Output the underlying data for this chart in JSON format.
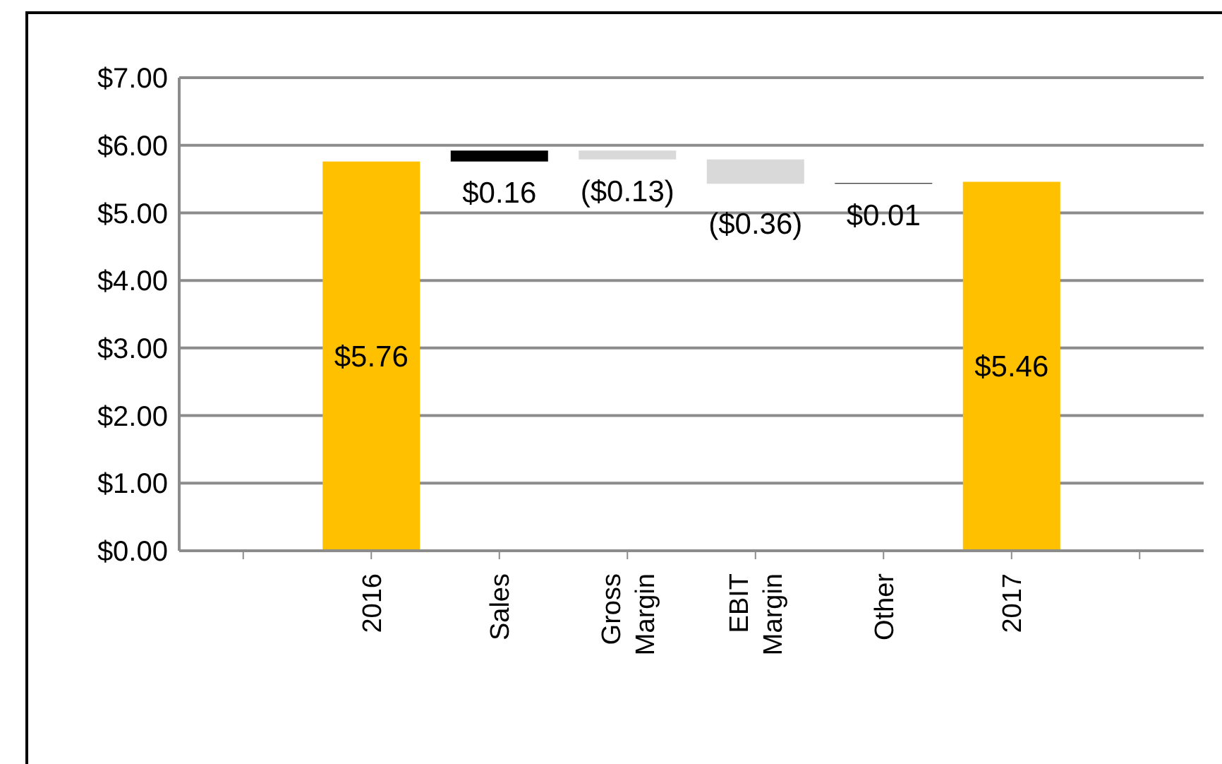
{
  "chart_data": {
    "type": "bar",
    "categories": [
      null,
      "2016",
      "Sales",
      "Gross Margin",
      "EBIT Margin",
      "Other",
      "2017",
      null
    ],
    "values": [
      null,
      5.76,
      0.16,
      -0.13,
      -0.36,
      0.01,
      5.46,
      null
    ],
    "base": [
      null,
      0,
      5.76,
      5.92,
      5.79,
      5.43,
      0,
      null
    ],
    "colors": [
      "#ffc000",
      "#ffc000",
      "#000000",
      "#d9d9d9",
      "#d9d9d9",
      "#000000",
      "#ffc000",
      "#ffc000"
    ],
    "value_labels": [
      null,
      "$5.76",
      "$0.16",
      "($0.13)",
      "($0.36)",
      "$0.01",
      "$5.46",
      null
    ],
    "ylim": [
      0,
      7
    ],
    "yticks": [
      {
        "value": 0,
        "label": "$0.00"
      },
      {
        "value": 1,
        "label": "$1.00"
      },
      {
        "value": 2,
        "label": "$2.00"
      },
      {
        "value": 3,
        "label": "$3.00"
      },
      {
        "value": 4,
        "label": "$4.00"
      },
      {
        "value": 5,
        "label": "$5.00"
      },
      {
        "value": 6,
        "label": "$6.00"
      },
      {
        "value": 7,
        "label": "$7.00"
      }
    ],
    "grid": "y",
    "legend": false
  }
}
